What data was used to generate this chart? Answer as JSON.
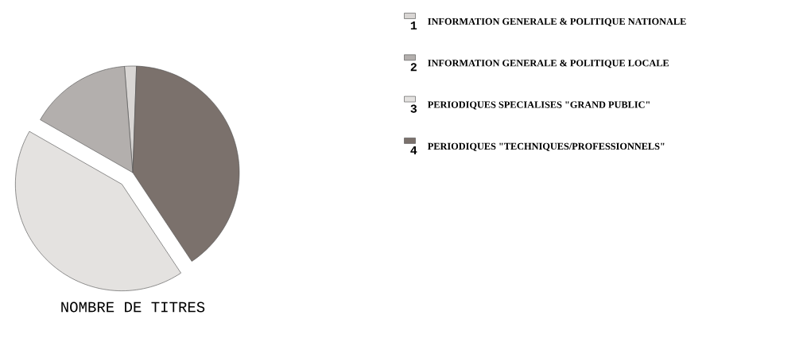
{
  "chart_data": {
    "type": "pie",
    "title": "NOMBRE DE TITRES",
    "categories": [
      "INFORMATION GENERALE & POLITIQUE NATIONALE",
      "INFORMATION GENERALE & POLITIQUE LOCALE",
      "PERIODIQUES SPECIALISES \"GRAND PUBLIC\"",
      "PERIODIQUES \"TECHNIQUES/PROFESSIONNELS\""
    ],
    "values": [
      1.8,
      15.5,
      42.6,
      40.1
    ],
    "colors": [
      "#d9d6d4",
      "#b3afad",
      "#e4e2e0",
      "#7b716c"
    ],
    "annotations": [
      "1",
      "2",
      "3",
      "4"
    ],
    "legend": "right"
  }
}
